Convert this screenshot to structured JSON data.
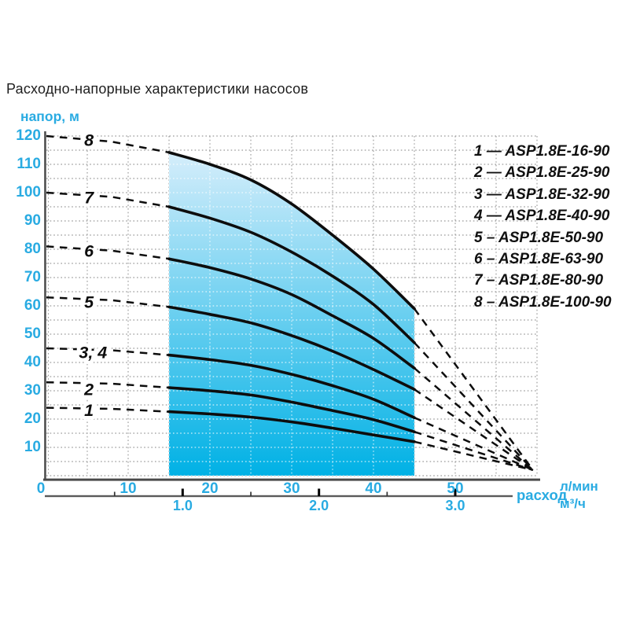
{
  "title": "Расходно-напорные характеристики насосов",
  "colors": {
    "accent": "#29abe2",
    "curve": "#0d0d0d",
    "grid": "#9a9a9a",
    "axis": "#4a4a4a",
    "band_top": "#d7eefb",
    "band_bottom": "#00b1e5"
  },
  "axes": {
    "y_label": "напор, м",
    "y_ticks": [
      120,
      110,
      100,
      90,
      80,
      70,
      60,
      50,
      40,
      30,
      20,
      10
    ],
    "x_ticks": [
      0,
      10,
      20,
      30,
      40,
      50
    ],
    "x2_ticks": [
      "1.0",
      "2.0",
      "3.0"
    ],
    "x2_minor_m3h": [
      0.5,
      1.5,
      2.5
    ],
    "flow_label": "расход",
    "unit_lmin": "л/мин",
    "unit_m3h": "м³/ч"
  },
  "chart_data": {
    "type": "line",
    "title": "Расходно-напорные характеристики насосов",
    "xlabel": "расход, л/мин (м³/ч)",
    "ylabel": "напор, м",
    "xlim_lmin": [
      0,
      60
    ],
    "ylim_m": [
      0,
      120
    ],
    "grid": "dotted, every 5 л/мин × 5 м",
    "legend_position": "right-top",
    "working_band_lmin": [
      15,
      45
    ],
    "dashed_outside_band": true,
    "convergence": {
      "q_lmin": 59.5,
      "head_m": 2
    },
    "x_lmin": [
      0,
      8,
      15,
      20,
      25,
      30,
      35,
      40,
      45,
      59.5
    ],
    "series": [
      {
        "name": "1",
        "models": [
          "ASP1.8E-16-90"
        ],
        "head_m": [
          24,
          23.6,
          22.6,
          21.8,
          20.7,
          19,
          16.8,
          14.4,
          12,
          2
        ]
      },
      {
        "name": "2",
        "models": [
          "ASP1.8E-25-90"
        ],
        "head_m": [
          33,
          32.5,
          31.1,
          30,
          28.5,
          26,
          23,
          19.8,
          15.5,
          2
        ]
      },
      {
        "name": "3, 4",
        "models": [
          "ASP1.8E-32-90",
          "ASP1.8E-40-90"
        ],
        "head_m": [
          45,
          44.3,
          42.6,
          41,
          39,
          35.8,
          31.8,
          27,
          20.5,
          2
        ]
      },
      {
        "name": "5",
        "models": [
          "ASP1.8E-50-90"
        ],
        "head_m": [
          63,
          62,
          59.6,
          57,
          54,
          49.5,
          44,
          37.5,
          30.5,
          2
        ]
      },
      {
        "name": "6",
        "models": [
          "ASP1.8E-63-90"
        ],
        "head_m": [
          81,
          79.5,
          76.6,
          73.5,
          69.5,
          64,
          56.5,
          48.5,
          38,
          2
        ]
      },
      {
        "name": "7",
        "models": [
          "ASP1.8E-80-90"
        ],
        "head_m": [
          100,
          98.5,
          95,
          91,
          86,
          79,
          70.5,
          60.5,
          47,
          2
        ]
      },
      {
        "name": "8",
        "models": [
          "ASP1.8E-100-90"
        ],
        "head_m": [
          120,
          118,
          114.2,
          110,
          104.5,
          96,
          85,
          73,
          59,
          2
        ]
      }
    ]
  },
  "curve_labels": [
    {
      "text": "1",
      "q": 5.2,
      "h": 23.2
    },
    {
      "text": "2",
      "q": 5.2,
      "h": 30.6
    },
    {
      "text": "3, 4",
      "q": 5.7,
      "h": 43.6
    },
    {
      "text": "5",
      "q": 5.2,
      "h": 61.4
    },
    {
      "text": "6",
      "q": 5.2,
      "h": 79.4
    },
    {
      "text": "7",
      "q": 5.2,
      "h": 98.3
    },
    {
      "text": "8",
      "q": 5.2,
      "h": 118.6
    }
  ],
  "legend": {
    "items": [
      "1 — ASP1.8E-16-90",
      "2 — ASP1.8E-25-90",
      "3 — ASP1.8E-32-90",
      "4 — ASP1.8E-40-90",
      "5 – ASP1.8E-50-90",
      "6 – ASP1.8E-63-90",
      "7 – ASP1.8E-80-90",
      "8 – ASP1.8E-100-90"
    ]
  }
}
